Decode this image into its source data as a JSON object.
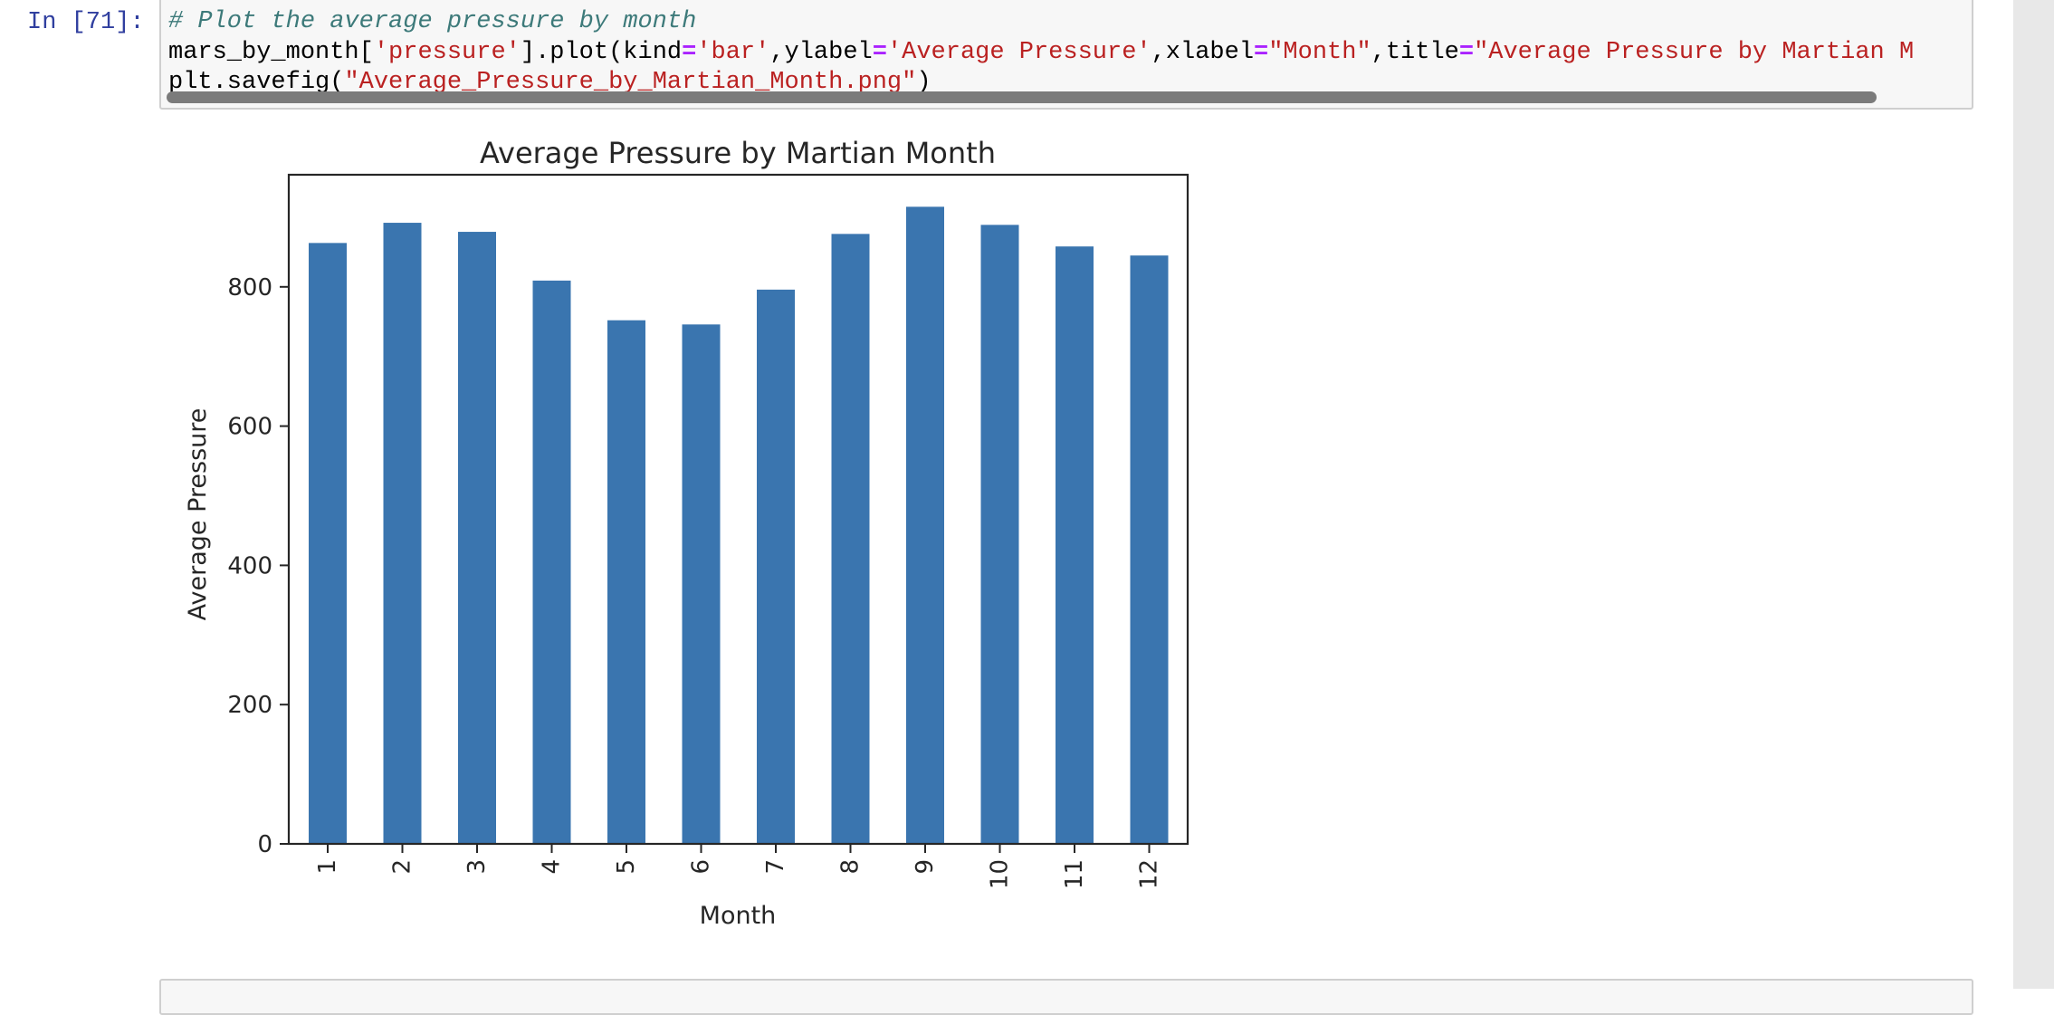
{
  "cell": {
    "prompt": "In [71]:",
    "code_lines": [
      [
        {
          "t": "# Plot the average pressure by month",
          "k": "comment"
        }
      ],
      [
        {
          "t": "mars_by_month[",
          "k": "plain"
        },
        {
          "t": "'pressure'",
          "k": "str"
        },
        {
          "t": "].plot(kind",
          "k": "plain"
        },
        {
          "t": "=",
          "k": "op"
        },
        {
          "t": "'bar'",
          "k": "str"
        },
        {
          "t": ",ylabel",
          "k": "plain"
        },
        {
          "t": "=",
          "k": "op"
        },
        {
          "t": "'Average Pressure'",
          "k": "str"
        },
        {
          "t": ",xlabel",
          "k": "plain"
        },
        {
          "t": "=",
          "k": "op"
        },
        {
          "t": "\"Month\"",
          "k": "str"
        },
        {
          "t": ",title",
          "k": "plain"
        },
        {
          "t": "=",
          "k": "op"
        },
        {
          "t": "\"Average Pressure by Martian M",
          "k": "str"
        }
      ],
      [
        {
          "t": "plt.savefig(",
          "k": "plain"
        },
        {
          "t": "\"Average_Pressure_by_Martian_Month.png\"",
          "k": "str"
        },
        {
          "t": ")",
          "k": "plain"
        }
      ]
    ]
  },
  "colors": {
    "bar": "#3a75af",
    "axis": "#262626",
    "prompt": "#303f9f",
    "comment": "#3d7a7a",
    "string": "#ba2121",
    "operator": "#aa22ff"
  },
  "chart_data": {
    "type": "bar",
    "title": "Average Pressure by Martian Month",
    "xlabel": "Month",
    "ylabel": "Average Pressure",
    "categories": [
      "1",
      "2",
      "3",
      "4",
      "5",
      "6",
      "7",
      "8",
      "9",
      "10",
      "11",
      "12"
    ],
    "values": [
      863,
      892,
      879,
      809,
      752,
      746,
      796,
      876,
      915,
      889,
      858,
      845
    ],
    "yticks": [
      0,
      200,
      400,
      600,
      800
    ],
    "ylim": [
      0,
      962
    ],
    "grid": false,
    "legend": false,
    "xtick_rotation": 90
  }
}
